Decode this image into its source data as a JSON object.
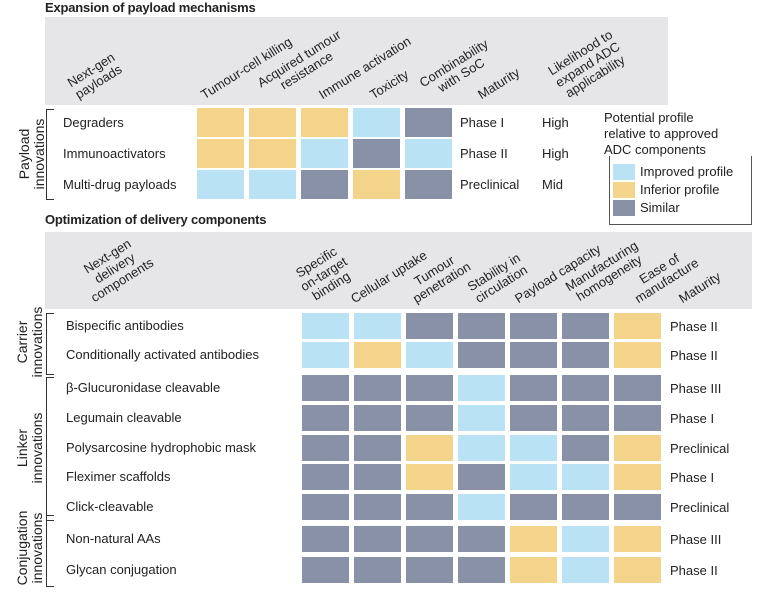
{
  "colors": {
    "improved": "#b9e3f5",
    "inferior": "#f3d48a",
    "similar": "#8991a7",
    "header": "#e6e6e9"
  },
  "payload": {
    "title": "Expansion of payload mechanisms",
    "group_label": [
      "Payload",
      "innovations"
    ],
    "corner_header": [
      "Next-gen",
      "payloads"
    ],
    "columns": [
      [
        "Tumour-cell killing"
      ],
      [
        "Acquired tumour",
        "resistance"
      ],
      [
        "Immune activation"
      ],
      [
        "Toxicity"
      ],
      [
        "Combinability",
        "with SoC"
      ],
      [
        "Maturity"
      ],
      [
        "Likelihood to",
        "expand ADC",
        "applicability"
      ]
    ],
    "rows": [
      {
        "label": "Degraders",
        "cells": [
          "inferior",
          "inferior",
          "inferior",
          "improved",
          "similar"
        ],
        "maturity": "Phase I",
        "likelihood": "High"
      },
      {
        "label": "Immunoactivators",
        "cells": [
          "inferior",
          "inferior",
          "improved",
          "similar",
          "improved"
        ],
        "maturity": "Phase II",
        "likelihood": "High"
      },
      {
        "label": "Multi-drug payloads",
        "cells": [
          "improved",
          "improved",
          "similar",
          "inferior",
          "similar"
        ],
        "maturity": "Preclinical",
        "likelihood": "Mid"
      }
    ]
  },
  "legend": {
    "title": [
      "Potential profile",
      "relative to approved",
      "ADC components"
    ],
    "items": [
      {
        "key": "improved",
        "label": "Improved profile"
      },
      {
        "key": "inferior",
        "label": "Inferior profile"
      },
      {
        "key": "similar",
        "label": "Similar"
      }
    ]
  },
  "delivery": {
    "title": "Optimization of delivery components",
    "corner_header": [
      "Next-gen",
      "delivery",
      "components"
    ],
    "columns": [
      [
        "Specific",
        "on-target",
        "binding"
      ],
      [
        "Cellular uptake"
      ],
      [
        "Tumour",
        "penetration"
      ],
      [
        "Stability in",
        "circulation"
      ],
      [
        "Payload capacity"
      ],
      [
        "Manufacturing",
        "homogeneity"
      ],
      [
        "Ease of",
        "manufacture"
      ],
      [
        "Maturity"
      ]
    ],
    "groups": [
      {
        "label": [
          "Carrier",
          "innovations"
        ]
      },
      {
        "label": [
          "Linker",
          "innovations"
        ]
      },
      {
        "label": [
          "Conjugation",
          "innovations"
        ]
      }
    ],
    "rows": [
      {
        "label": "Bispecific antibodies",
        "cells": [
          "improved",
          "improved",
          "similar",
          "similar",
          "similar",
          "similar",
          "inferior"
        ],
        "maturity": "Phase II"
      },
      {
        "label": "Conditionally activated antibodies",
        "cells": [
          "improved",
          "inferior",
          "improved",
          "similar",
          "similar",
          "similar",
          "inferior"
        ],
        "maturity": "Phase II"
      },
      {
        "label": "β-Glucuronidase cleavable",
        "cells": [
          "similar",
          "similar",
          "similar",
          "improved",
          "similar",
          "similar",
          "similar"
        ],
        "maturity": "Phase III"
      },
      {
        "label": "Legumain cleavable",
        "cells": [
          "similar",
          "similar",
          "similar",
          "improved",
          "similar",
          "similar",
          "similar"
        ],
        "maturity": "Phase I"
      },
      {
        "label": "Polysarcosine hydrophobic mask",
        "cells": [
          "similar",
          "similar",
          "inferior",
          "improved",
          "improved",
          "similar",
          "inferior"
        ],
        "maturity": "Preclinical"
      },
      {
        "label": "Fleximer scaffolds",
        "cells": [
          "similar",
          "similar",
          "inferior",
          "similar",
          "improved",
          "improved",
          "inferior"
        ],
        "maturity": "Phase I"
      },
      {
        "label": "Click-cleavable",
        "cells": [
          "similar",
          "similar",
          "similar",
          "improved",
          "similar",
          "similar",
          "similar"
        ],
        "maturity": "Preclinical"
      },
      {
        "label": "Non-natural AAs",
        "cells": [
          "similar",
          "similar",
          "similar",
          "similar",
          "inferior",
          "improved",
          "inferior"
        ],
        "maturity": "Phase III"
      },
      {
        "label": "Glycan conjugation",
        "cells": [
          "similar",
          "similar",
          "similar",
          "similar",
          "inferior",
          "improved",
          "inferior"
        ],
        "maturity": "Phase II"
      }
    ]
  }
}
